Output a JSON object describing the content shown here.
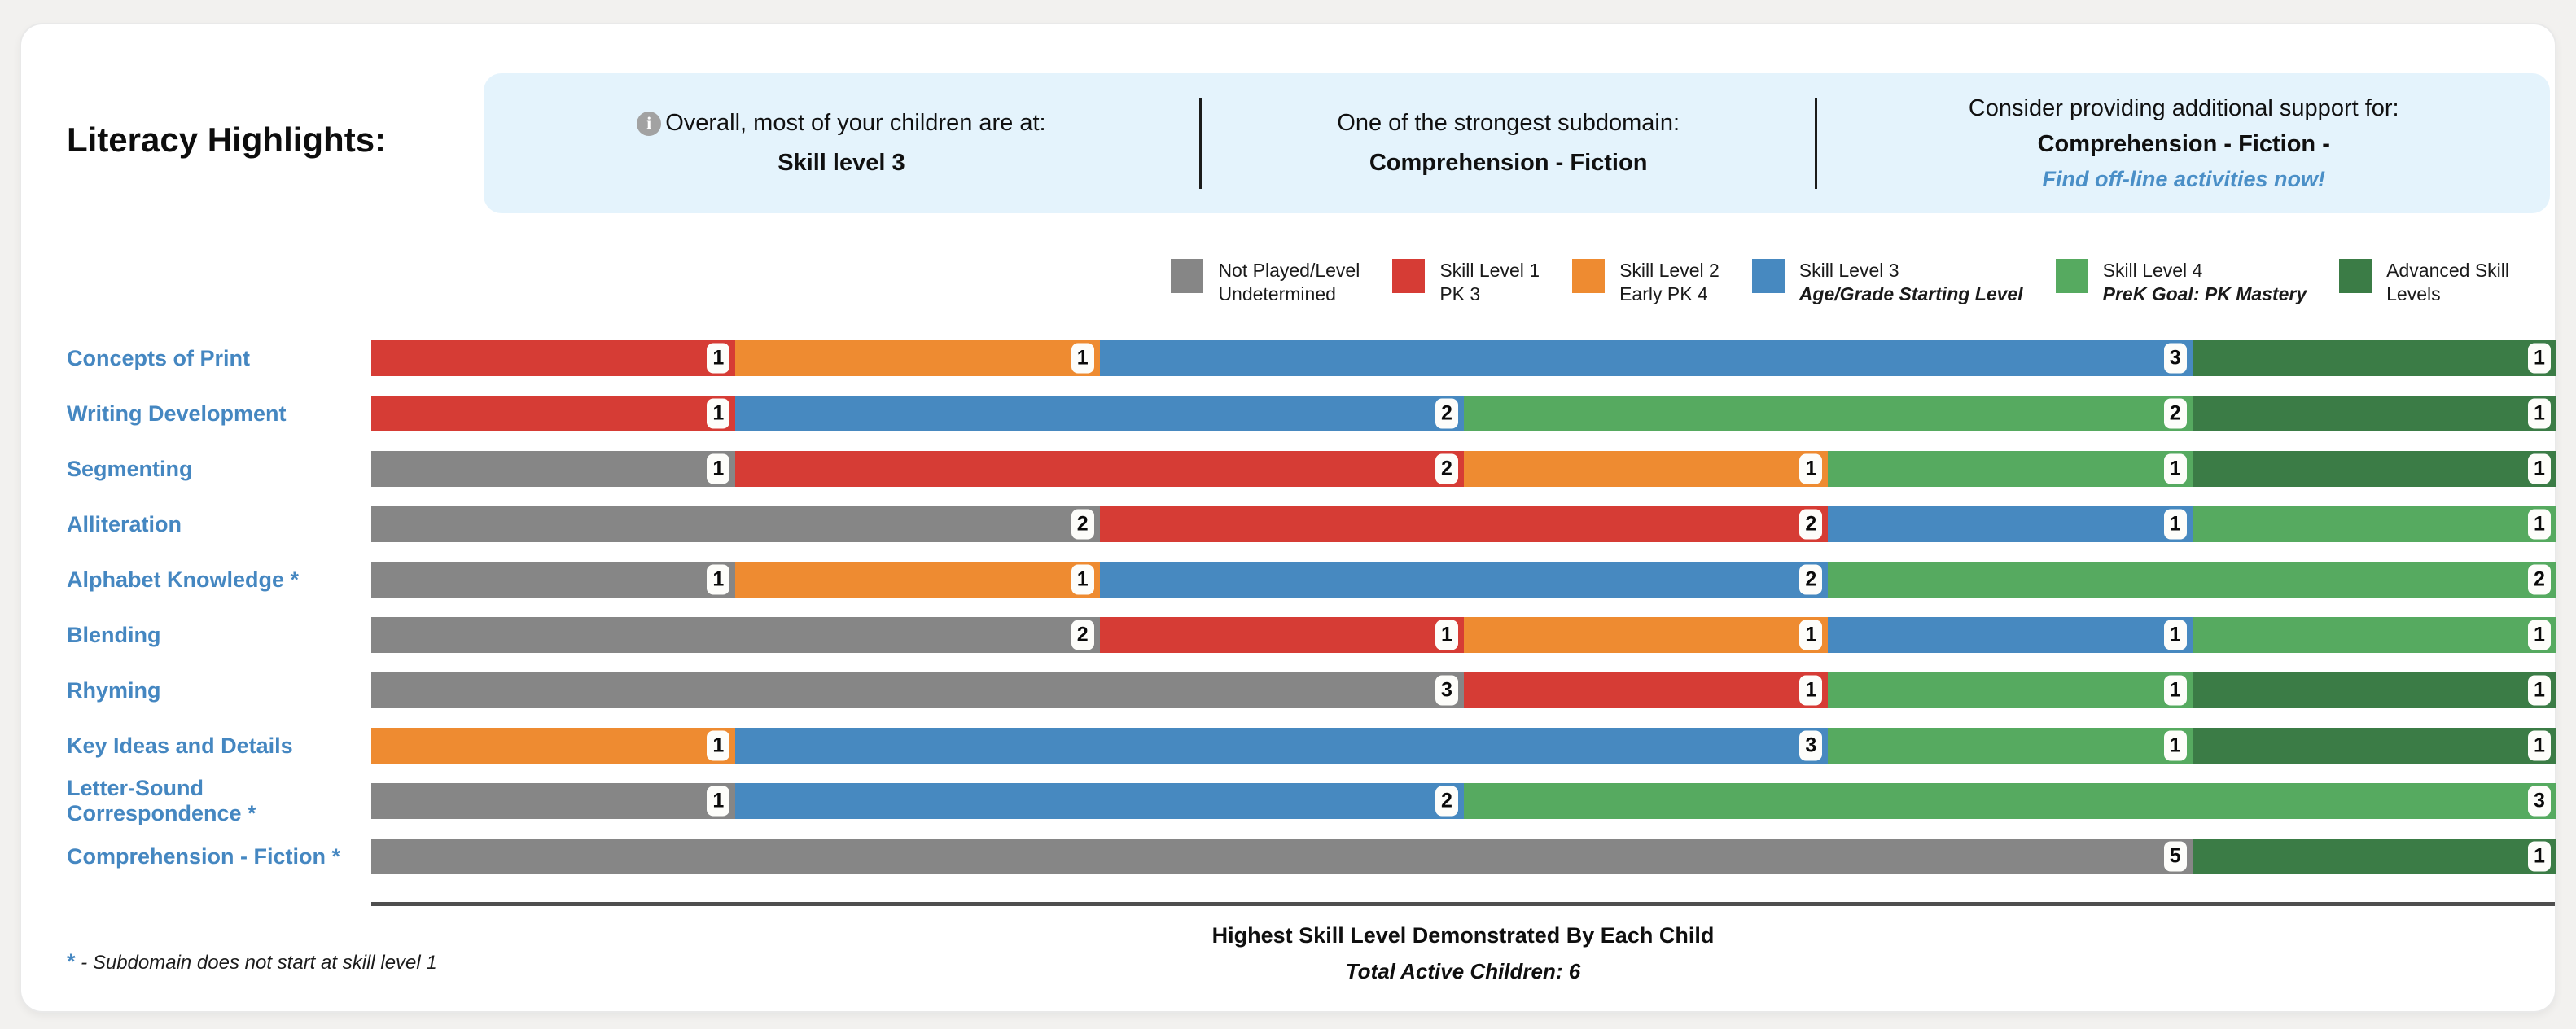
{
  "header": {
    "title": "Literacy Highlights:"
  },
  "highlights": {
    "background": "#e4f3fc",
    "sections": [
      {
        "icon": "info-icon",
        "icon_glyph": "i",
        "line1": "Overall, most of your children are at:",
        "line2": "Skill level 3"
      },
      {
        "line1": "One of the strongest subdomain:",
        "line2": "Comprehension - Fiction"
      },
      {
        "line1": "Consider providing additional support for:",
        "line2": "Comprehension - Fiction -",
        "link": "Find off-line activities now!"
      }
    ]
  },
  "legend": {
    "items": [
      {
        "color": "#868686",
        "line1": "Not Played/Level",
        "line2": "Undetermined",
        "line2_emphasis": false
      },
      {
        "color": "#d63c35",
        "line1": "Skill Level 1",
        "line2": "PK 3",
        "line2_emphasis": false
      },
      {
        "color": "#ee8b31",
        "line1": "Skill Level 2",
        "line2": "Early PK 4",
        "line2_emphasis": false
      },
      {
        "color": "#4789c0",
        "line1": "Skill Level 3",
        "line2": "Age/Grade Starting Level",
        "line2_emphasis": true
      },
      {
        "color": "#56aa60",
        "line1": "Skill Level 4",
        "line2": "PreK Goal: PK Mastery",
        "line2_emphasis": true
      },
      {
        "color": "#3b7c46",
        "line1": "Advanced Skill",
        "line2": "Levels",
        "line2_emphasis": false
      }
    ]
  },
  "chart_data": {
    "type": "bar",
    "orientation": "horizontal",
    "stacked": true,
    "x_max": 6,
    "value_unit": "children",
    "grid": false,
    "legend_position": "top-right",
    "levels": {
      "not_played": {
        "name": "Not Played/Level Undetermined",
        "color": "#868686"
      },
      "level1": {
        "name": "Skill Level 1 - PK 3",
        "color": "#d63c35"
      },
      "level2": {
        "name": "Skill Level 2 - Early PK 4",
        "color": "#ee8b31"
      },
      "level3": {
        "name": "Skill Level 3 - Age/Grade Starting Level",
        "color": "#4789c0"
      },
      "level4": {
        "name": "Skill Level 4 - PreK Goal: PK Mastery",
        "color": "#56aa60"
      },
      "advanced": {
        "name": "Advanced Skill Levels",
        "color": "#3b7c46"
      }
    },
    "rows": [
      {
        "label": "Concepts of Print",
        "segments": [
          {
            "level": "level1",
            "count": 1
          },
          {
            "level": "level2",
            "count": 1
          },
          {
            "level": "level3",
            "count": 3
          },
          {
            "level": "advanced",
            "count": 1
          }
        ]
      },
      {
        "label": "Writing Development",
        "segments": [
          {
            "level": "level1",
            "count": 1
          },
          {
            "level": "level3",
            "count": 2
          },
          {
            "level": "level4",
            "count": 2
          },
          {
            "level": "advanced",
            "count": 1
          }
        ]
      },
      {
        "label": "Segmenting",
        "segments": [
          {
            "level": "not_played",
            "count": 1
          },
          {
            "level": "level1",
            "count": 2
          },
          {
            "level": "level2",
            "count": 1
          },
          {
            "level": "level4",
            "count": 1
          },
          {
            "level": "advanced",
            "count": 1
          }
        ]
      },
      {
        "label": "Alliteration",
        "segments": [
          {
            "level": "not_played",
            "count": 2
          },
          {
            "level": "level1",
            "count": 2
          },
          {
            "level": "level3",
            "count": 1
          },
          {
            "level": "level4",
            "count": 1
          }
        ]
      },
      {
        "label": "Alphabet Knowledge *",
        "segments": [
          {
            "level": "not_played",
            "count": 1
          },
          {
            "level": "level2",
            "count": 1
          },
          {
            "level": "level3",
            "count": 2
          },
          {
            "level": "level4",
            "count": 2
          }
        ]
      },
      {
        "label": "Blending",
        "segments": [
          {
            "level": "not_played",
            "count": 2
          },
          {
            "level": "level1",
            "count": 1
          },
          {
            "level": "level2",
            "count": 1
          },
          {
            "level": "level3",
            "count": 1
          },
          {
            "level": "level4",
            "count": 1
          }
        ]
      },
      {
        "label": "Rhyming",
        "segments": [
          {
            "level": "not_played",
            "count": 3
          },
          {
            "level": "level1",
            "count": 1
          },
          {
            "level": "level4",
            "count": 1
          },
          {
            "level": "advanced",
            "count": 1
          }
        ]
      },
      {
        "label": "Key Ideas and Details",
        "segments": [
          {
            "level": "level2",
            "count": 1
          },
          {
            "level": "level3",
            "count": 3
          },
          {
            "level": "level4",
            "count": 1
          },
          {
            "level": "advanced",
            "count": 1
          }
        ]
      },
      {
        "label": "Letter-Sound Correspondence *",
        "segments": [
          {
            "level": "not_played",
            "count": 1
          },
          {
            "level": "level3",
            "count": 2
          },
          {
            "level": "level4",
            "count": 3
          }
        ]
      },
      {
        "label": "Comprehension - Fiction *",
        "segments": [
          {
            "level": "not_played",
            "count": 5
          },
          {
            "level": "advanced",
            "count": 1
          }
        ]
      }
    ],
    "caption": "Highest Skill Level Demonstrated By Each Child",
    "subcaption": "Total Active Children: 6"
  },
  "footer": {
    "note_star": "*",
    "note_text": " - Subdomain does not start at skill level 1",
    "caption": "Highest Skill Level Demonstrated By Each Child",
    "subcaption": "Total Active Children: 6"
  }
}
